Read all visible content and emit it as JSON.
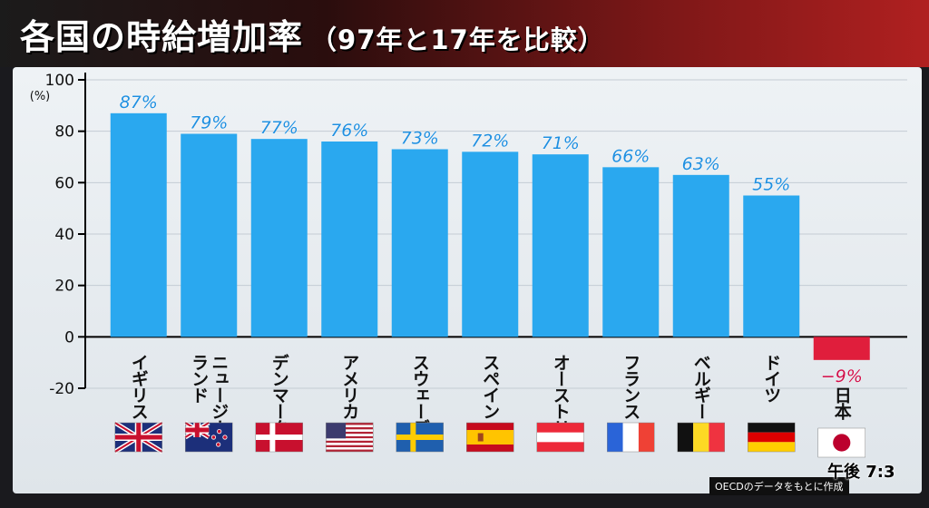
{
  "header": {
    "title": "各国の時給増加率",
    "subtitle": "（97年と17年を比較）"
  },
  "footer": {
    "source": "OECDのデータをもとに作成",
    "clock_label": "午後",
    "clock_time": "7:3"
  },
  "colors": {
    "positive_bar": "#2aa8ef",
    "negative_bar": "#e01e3c",
    "positive_label": "#1f8fe0",
    "negative_label": "#d0104a"
  },
  "chart_data": {
    "type": "bar",
    "ylabel": "(%)",
    "ylim": [
      -20,
      100
    ],
    "yticks": [
      -20,
      0,
      20,
      40,
      60,
      80,
      100
    ],
    "grid": true,
    "categories": [
      "イギリス",
      "ニュージーランド",
      "デンマーク",
      "アメリカ",
      "スウェーデン",
      "スペイン",
      "オーストリア",
      "フランス",
      "ベルギー",
      "ドイツ",
      "日本"
    ],
    "category_lines": [
      [
        "イギリス"
      ],
      [
        "ニュージー",
        "ランド"
      ],
      [
        "デンマーク"
      ],
      [
        "アメリカ"
      ],
      [
        "スウェーデン"
      ],
      [
        "スペイン"
      ],
      [
        "オーストリア"
      ],
      [
        "フランス"
      ],
      [
        "ベルギー"
      ],
      [
        "ドイツ"
      ],
      [
        "日本"
      ]
    ],
    "values": [
      87,
      79,
      77,
      76,
      73,
      72,
      71,
      66,
      63,
      55,
      -9
    ],
    "value_labels": [
      "87%",
      "79%",
      "77%",
      "76%",
      "73%",
      "72%",
      "71%",
      "66%",
      "63%",
      "55%",
      "−9%"
    ],
    "flags": [
      "uk-flag",
      "new-zealand-flag",
      "denmark-flag",
      "usa-flag",
      "sweden-flag",
      "spain-flag",
      "austria-flag",
      "france-flag",
      "belgium-flag",
      "germany-flag",
      "japan-flag"
    ]
  }
}
